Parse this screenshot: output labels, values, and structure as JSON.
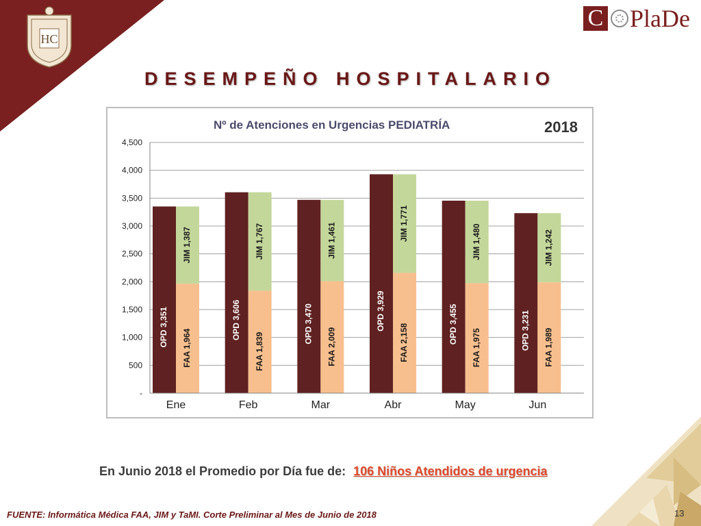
{
  "header": {
    "title": "DESEMPEÑO HOSPITALARIO",
    "crest_text": "HC",
    "logo": {
      "box_letter": "C",
      "rest_text": "PlaDe"
    }
  },
  "chart_data": {
    "type": "bar",
    "stacked": true,
    "title": "Nº de Atenciones en Urgencias PEDIATRÍA",
    "year_label": "2018",
    "categories": [
      "Ene",
      "Feb",
      "Mar",
      "Abr",
      "May",
      "Jun"
    ],
    "series": [
      {
        "name": "OPD",
        "values": [
          3351,
          3606,
          3470,
          3929,
          3455,
          3231
        ],
        "color": "#5f2121",
        "stack": "opd"
      },
      {
        "name": "FAA",
        "values": [
          1964,
          1839,
          2009,
          2158,
          1975,
          1989
        ],
        "color": "#f8bf8e",
        "stack": "oth"
      },
      {
        "name": "JIM",
        "values": [
          1387,
          1767,
          1461,
          1771,
          1480,
          1242
        ],
        "color": "#c4d79b",
        "stack": "oth"
      }
    ],
    "bar_labels": {
      "OPD": [
        "OPD  3,351",
        "OPD  3,606",
        "OPD  3,470",
        "OPD  3,929",
        "OPD  3,455",
        "OPD  3,231"
      ],
      "FAA": [
        "FAA  1,964",
        "FAA  1,839",
        "FAA  2,009",
        "FAA  2,158",
        "FAA  1,975",
        "FAA  1,989"
      ],
      "JIM": [
        "JIM  1,387",
        "JIM  1,767",
        "JIM  1,461",
        "JIM  1,771",
        "JIM  1,480",
        "JIM  1,242"
      ]
    },
    "ylim": [
      0,
      4500
    ],
    "yticks": [
      0,
      500,
      1000,
      1500,
      2000,
      2500,
      3000,
      3500,
      4000,
      4500
    ],
    "ytick_labels": [
      "-",
      "500",
      "1,000",
      "1,500",
      "2,000",
      "2,500",
      "3,000",
      "3,500",
      "4,000",
      "4,500"
    ],
    "grid": true,
    "xlabel": "",
    "ylabel": ""
  },
  "summary": {
    "text": "En Junio 2018 el Promedio por Día fue de:",
    "highlight": "106  Niños Atendidos de urgencia"
  },
  "footer": {
    "source": "FUENTE: Informática Médica  FAA, JIM y TaMI. Corte Preliminar al Mes de Junio de 2018",
    "page_number": "13"
  },
  "colors": {
    "brand": "#6a1717",
    "corner": "#7a1f1f",
    "highlight": "#e04a2c"
  }
}
